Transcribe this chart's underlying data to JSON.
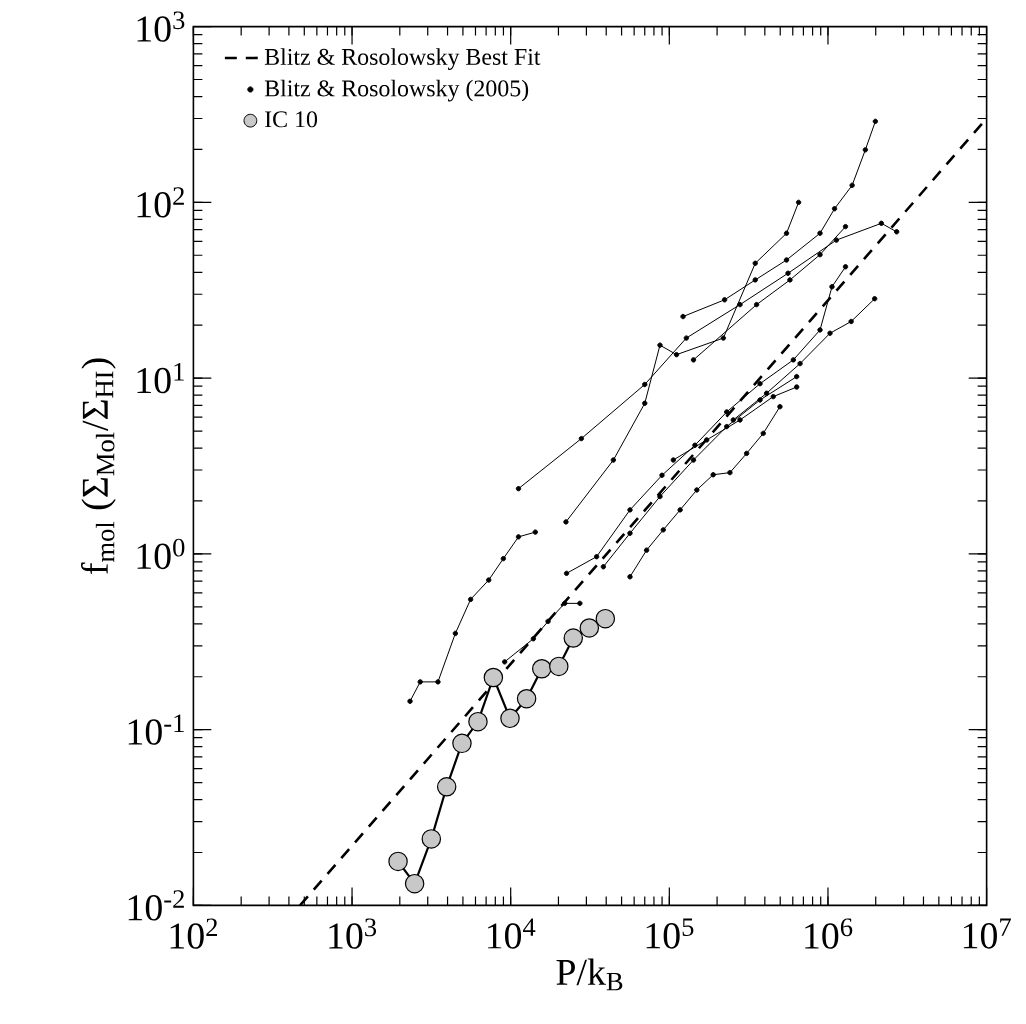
{
  "chart_data": {
    "type": "line",
    "xlabel": "P/k$_{B}$",
    "ylabel": "f$_{mol}$ (Σ$_{Mol}$/Σ$_{HI}$)",
    "log": "xy",
    "legend": "top left",
    "grid": false,
    "xlim": [
      100,
      10000000
    ],
    "ylim": [
      0.01,
      1000
    ],
    "xticks": [
      {
        "value": 100,
        "label": "10$^{2}$"
      },
      {
        "value": 1000,
        "label": "10$^{3}$"
      },
      {
        "value": 10000,
        "label": "10$^{4}$"
      },
      {
        "value": 100000,
        "label": "10$^{5}$"
      },
      {
        "value": 1000000,
        "label": "10$^{6}$"
      },
      {
        "value": 10000000,
        "label": "10$^{7}$"
      }
    ],
    "yticks": [
      {
        "value": 0.01,
        "label": "10$^{-2}$"
      },
      {
        "value": 0.1,
        "label": "10$^{-1}$"
      },
      {
        "value": 1,
        "label": "10$^{0}$"
      },
      {
        "value": 10,
        "label": "10$^{1}$"
      },
      {
        "value": 100,
        "label": "10$^{2}$"
      },
      {
        "value": 1000,
        "label": "10$^{3}$"
      }
    ],
    "series": [
      {
        "name": "Blitz & Rosolowsky Best Fit",
        "color": "#000000",
        "marker": "none",
        "line_style": "dashed",
        "x": [
          470,
          10000000
        ],
        "values": [
          0.01,
          300
        ]
      },
      {
        "name": "Blitz & Rosolowsky (2005)",
        "color": "#000000",
        "marker": "circle",
        "line_style": "solid",
        "x": [
          2320,
          2690,
          3480,
          4480,
          5590,
          7270,
          8990,
          11200,
          14300
        ],
        "values": [
          0.145,
          0.187,
          0.187,
          0.353,
          0.551,
          0.71,
          0.94,
          1.25,
          1.33
        ]
      },
      {
        "color": "#000000",
        "marker": "circle",
        "line_style": "solid",
        "x": [
          9160,
          13900,
          17200,
          21900,
          27300
        ],
        "values": [
          0.243,
          0.329,
          0.413,
          0.523,
          0.523
        ]
      },
      {
        "color": "#000000",
        "marker": "circle",
        "line_style": "solid",
        "x": [
          11200,
          27900,
          70000,
          128000,
          279000,
          560000,
          1130000,
          2170000,
          2710000
        ],
        "values": [
          2.35,
          4.53,
          9.2,
          16.9,
          26.2,
          39.5,
          61,
          76,
          68
        ]
      },
      {
        "color": "#000000",
        "marker": "circle",
        "line_style": "solid",
        "x": [
          122000,
          223000,
          348000,
          548000,
          891000,
          1100000,
          1420000,
          1720000,
          1990000
        ],
        "values": [
          22.4,
          27.9,
          36.2,
          47,
          66.7,
          92,
          125,
          199,
          289
        ]
      },
      {
        "color": "#000000",
        "marker": "circle",
        "line_style": "solid",
        "x": [
          22300,
          44400,
          70000,
          87300,
          111000,
          219000,
          348000,
          548000,
          653000
        ],
        "values": [
          1.52,
          3.42,
          7.19,
          15.4,
          13.6,
          16.9,
          45,
          66.7,
          100
        ]
      },
      {
        "color": "#000000",
        "marker": "circle",
        "line_style": "solid",
        "x": [
          142000,
          355000,
          576000,
          891000,
          1290000
        ],
        "values": [
          12.7,
          26.2,
          36.2,
          50.4,
          72.8
        ]
      },
      {
        "color": "#000000",
        "marker": "circle",
        "line_style": "solid",
        "x": [
          22500,
          34800,
          56500,
          89900,
          145000,
          230000,
          373000,
          605000,
          891000,
          1060000,
          1290000
        ],
        "values": [
          0.775,
          0.964,
          1.78,
          2.8,
          4.15,
          6.42,
          9.3,
          12.7,
          18.8,
          33.1,
          43
        ]
      },
      {
        "color": "#000000",
        "marker": "circle",
        "line_style": "solid",
        "x": [
          38400,
          56500,
          87300,
          142000,
          230000,
          373000,
          635000
        ],
        "values": [
          0.845,
          1.31,
          2.12,
          3.42,
          5.3,
          7.51,
          10.2
        ]
      },
      {
        "color": "#000000",
        "marker": "circle",
        "line_style": "solid",
        "x": [
          56500,
          71900,
          91600,
          117000,
          149000,
          189000,
          241000,
          307000,
          391000,
          498000
        ],
        "values": [
          0.741,
          1.05,
          1.37,
          1.78,
          2.31,
          2.82,
          2.9,
          3.73,
          4.85,
          6.88
        ]
      },
      {
        "color": "#000000",
        "marker": "circle",
        "line_style": "solid",
        "x": [
          253000,
          410000,
          667000,
          1030000,
          1400000,
          1970000
        ],
        "values": [
          5.78,
          8.2,
          12.1,
          18,
          21,
          28.3
        ]
      },
      {
        "color": "#000000",
        "marker": "circle",
        "line_style": "solid",
        "x": [
          106000,
          172000,
          279000,
          452000,
          635000
        ],
        "values": [
          3.42,
          4.45,
          5.78,
          7.85,
          8.9
        ]
      },
      {
        "name": "IC 10",
        "color": "#c8c8c8",
        "marker": "circle",
        "line_style": "solid",
        "x": [
          1950,
          2480,
          3160,
          3950,
          4930,
          6220,
          7780,
          9900,
          12600,
          15700,
          20100,
          24800,
          31300,
          39500
        ],
        "values": [
          0.0178,
          0.0133,
          0.0239,
          0.0473,
          0.0836,
          0.111,
          0.198,
          0.116,
          0.15,
          0.222,
          0.229,
          0.332,
          0.379,
          0.428
        ]
      }
    ]
  }
}
